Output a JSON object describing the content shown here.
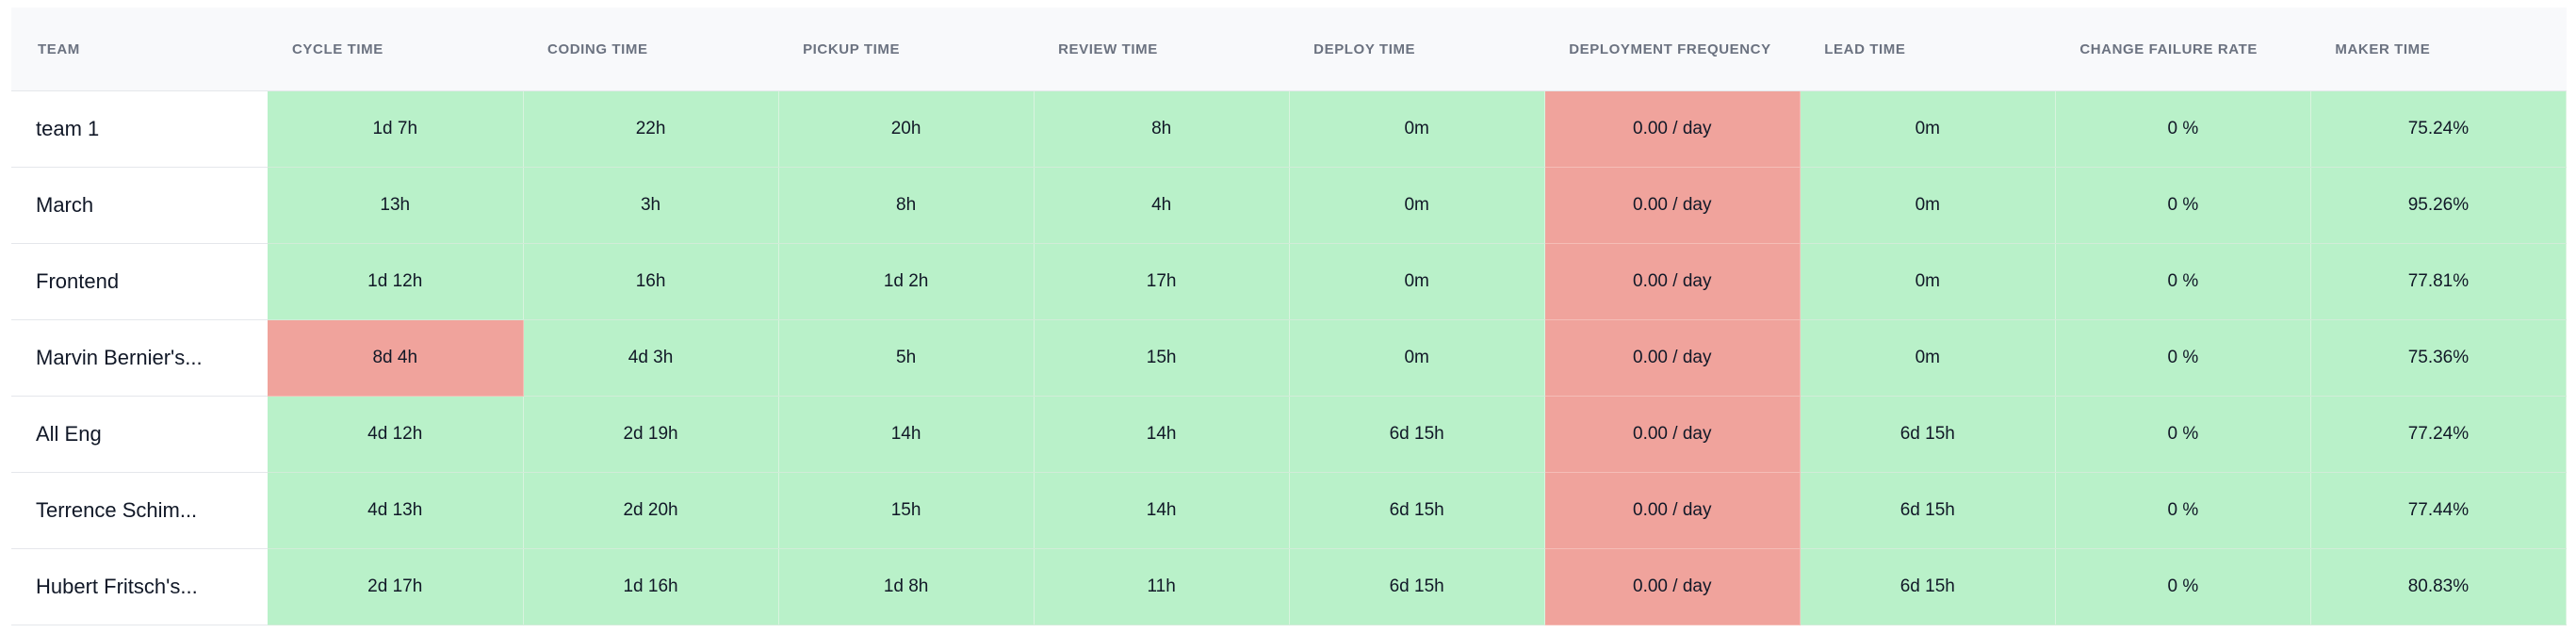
{
  "colors": {
    "good": "#b9f1c9",
    "bad": "#f0a39c",
    "header_bg": "#f8f9fb",
    "header_text": "#6b7280"
  },
  "table": {
    "headers": [
      "TEAM",
      "CYCLE TIME",
      "CODING TIME",
      "PICKUP TIME",
      "REVIEW TIME",
      "DEPLOY TIME",
      "DEPLOYMENT FREQUENCY",
      "LEAD TIME",
      "CHANGE FAILURE RATE",
      "MAKER TIME"
    ],
    "rows": [
      {
        "team": "team 1",
        "cells": [
          "1d 7h",
          "22h",
          "20h",
          "8h",
          "0m",
          "0.00 / day",
          "0m",
          "0 %",
          "75.24%"
        ],
        "status": [
          "good",
          "good",
          "good",
          "good",
          "good",
          "bad",
          "good",
          "good",
          "good"
        ]
      },
      {
        "team": "March",
        "cells": [
          "13h",
          "3h",
          "8h",
          "4h",
          "0m",
          "0.00 / day",
          "0m",
          "0 %",
          "95.26%"
        ],
        "status": [
          "good",
          "good",
          "good",
          "good",
          "good",
          "bad",
          "good",
          "good",
          "good"
        ]
      },
      {
        "team": "Frontend",
        "cells": [
          "1d 12h",
          "16h",
          "1d 2h",
          "17h",
          "0m",
          "0.00 / day",
          "0m",
          "0 %",
          "77.81%"
        ],
        "status": [
          "good",
          "good",
          "good",
          "good",
          "good",
          "bad",
          "good",
          "good",
          "good"
        ]
      },
      {
        "team": "Marvin Bernier's...",
        "cells": [
          "8d 4h",
          "4d 3h",
          "5h",
          "15h",
          "0m",
          "0.00 / day",
          "0m",
          "0 %",
          "75.36%"
        ],
        "status": [
          "bad",
          "good",
          "good",
          "good",
          "good",
          "bad",
          "good",
          "good",
          "good"
        ]
      },
      {
        "team": "All Eng",
        "cells": [
          "4d 12h",
          "2d 19h",
          "14h",
          "14h",
          "6d 15h",
          "0.00 / day",
          "6d 15h",
          "0 %",
          "77.24%"
        ],
        "status": [
          "good",
          "good",
          "good",
          "good",
          "good",
          "bad",
          "good",
          "good",
          "good"
        ]
      },
      {
        "team": "Terrence Schim...",
        "cells": [
          "4d 13h",
          "2d 20h",
          "15h",
          "14h",
          "6d 15h",
          "0.00 / day",
          "6d 15h",
          "0 %",
          "77.44%"
        ],
        "status": [
          "good",
          "good",
          "good",
          "good",
          "good",
          "bad",
          "good",
          "good",
          "good"
        ]
      },
      {
        "team": "Hubert Fritsch's...",
        "cells": [
          "2d 17h",
          "1d 16h",
          "1d 8h",
          "11h",
          "6d 15h",
          "0.00 / day",
          "6d 15h",
          "0 %",
          "80.83%"
        ],
        "status": [
          "good",
          "good",
          "good",
          "good",
          "good",
          "bad",
          "good",
          "good",
          "good"
        ]
      }
    ]
  }
}
